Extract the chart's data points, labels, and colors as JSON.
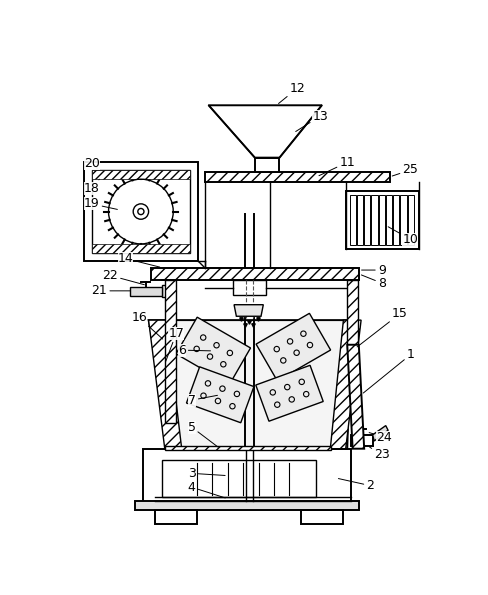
{
  "bg_color": "#ffffff",
  "line_color": "#000000",
  "fig_width": 4.89,
  "fig_height": 5.95,
  "dpi": 100
}
